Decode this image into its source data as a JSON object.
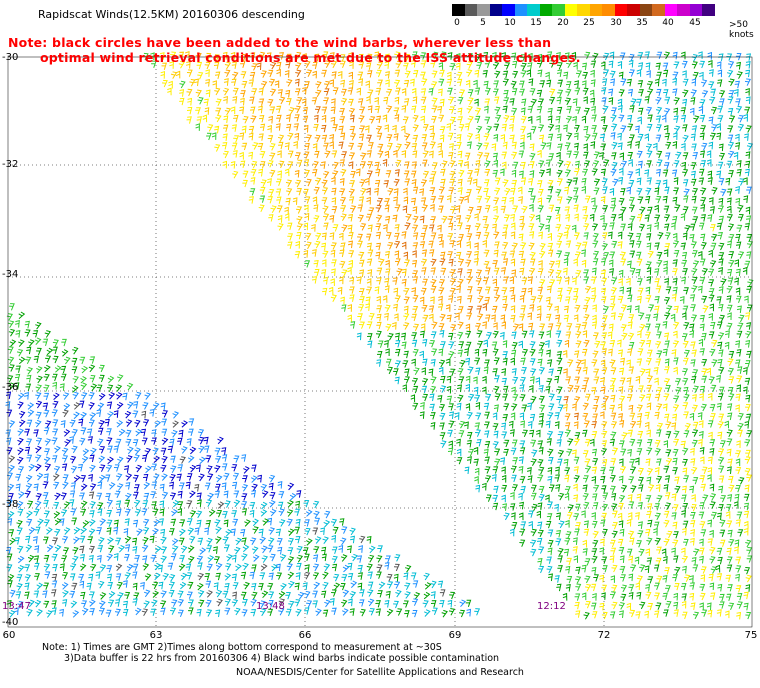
{
  "title": "Rapidscat Winds(12.5KM) 20160306 descending",
  "note": {
    "line1": "Note: black circles have been added to the wind barbs, wherever less than",
    "line2": "optimal wind retrieval conditions are met due to the ISS attitude changes."
  },
  "legend": {
    "units": ">50 knots",
    "colors": [
      "#000000",
      "#5a5a5a",
      "#9a9a9a",
      "#00008b",
      "#0000ff",
      "#1e90ff",
      "#00cccc",
      "#00aa00",
      "#33cc33",
      "#ffff00",
      "#ffd700",
      "#ffa500",
      "#ff8c00",
      "#ff0000",
      "#cc0000",
      "#8b4513",
      "#d2691e",
      "#ff00ff",
      "#cc00cc",
      "#9400d3",
      "#400080"
    ],
    "tick_labels": [
      "0",
      "5",
      "10",
      "15",
      "20",
      "25",
      "30",
      "35",
      "40",
      "45"
    ]
  },
  "axes": {
    "lat_labels": [
      "-30",
      "-32",
      "-34",
      "-36",
      "-38",
      "-40"
    ],
    "lon_labels": [
      "60",
      "63",
      "66",
      "69",
      "72",
      "75"
    ]
  },
  "times": [
    "13:47",
    "13:48",
    "12:12"
  ],
  "footnote": {
    "line1": "Note: 1) Times are GMT 2)Times along bottom correspond to measurement at ~30S",
    "line2": "3)Data buffer is 22 hrs from 20160306 4) Black wind barbs indicate possible contamination"
  },
  "credit": "NOAA/NESDIS/Center for Satellite Applications and Research"
}
